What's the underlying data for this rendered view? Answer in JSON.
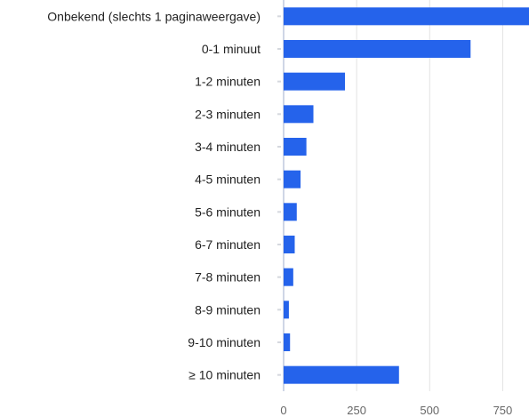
{
  "chart_data": {
    "type": "bar",
    "orientation": "horizontal",
    "categories": [
      "Onbekend (slechts 1 paginaweergave)",
      "0-1 minuut",
      "1-2 minuten",
      "2-3 minuten",
      "3-4 minuten",
      "4-5 minuten",
      "5-6 minuten",
      "6-7 minuten",
      "7-8 minuten",
      "8-9 minuten",
      "9-10 minuten",
      "≥ 10 minuten"
    ],
    "values": [
      840,
      640,
      210,
      102,
      78,
      58,
      45,
      38,
      33,
      18,
      22,
      395
    ],
    "xlim": [
      0,
      840
    ],
    "xticks": [
      0,
      250,
      500,
      750
    ],
    "xtick_labels": [
      "0",
      "250",
      "500",
      "750"
    ],
    "grid": true,
    "bar_color": "#2563eb",
    "title": "",
    "xlabel": "",
    "ylabel": ""
  }
}
